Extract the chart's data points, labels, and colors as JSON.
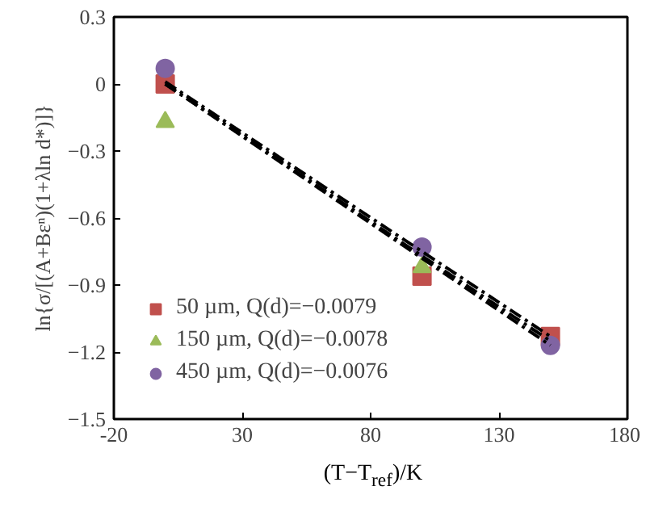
{
  "chart_data": {
    "type": "scatter",
    "xlabel": "(T−T$_{ref}$)/K",
    "ylabel": "ln{σ/[(A+Bεⁿ)(1+λln d*)]}",
    "x": [
      0,
      100,
      150
    ],
    "xlim": [
      -20,
      180
    ],
    "xticks": [
      -20,
      30,
      80,
      130,
      180
    ],
    "ylim": [
      -1.5,
      0.3
    ],
    "yticks": [
      {
        "value": -1.5,
        "label": "−1.5"
      },
      {
        "value": -1.2,
        "label": "−1.2"
      },
      {
        "value": -0.9,
        "label": "−0.9"
      },
      {
        "value": -0.6,
        "label": "−0.6"
      },
      {
        "value": -0.3,
        "label": "−0.3"
      },
      0,
      0.3
    ],
    "grid": false,
    "legend": "bottom left",
    "series": [
      {
        "name": "50 µm, Q(d)=−0.0079",
        "color": "#c0504d",
        "marker": "square",
        "values": [
          0.0,
          -0.86,
          -1.13
        ]
      },
      {
        "name": "150 µm, Q(d)=−0.0078",
        "color": "#9bbb59",
        "marker": "triangle",
        "values": [
          -0.17,
          -0.82,
          null
        ]
      },
      {
        "name": "450 µm, Q(d)=−0.0076",
        "color": "#8064a2",
        "marker": "circle",
        "values": [
          0.07,
          -0.73,
          -1.17
        ]
      },
      {
        "type": "line",
        "color": "#000000",
        "line_style": "dashdot",
        "values": [
          0.0,
          -0.78,
          -1.17
        ]
      },
      {
        "type": "line",
        "color": "#000000",
        "line_style": "dashdot",
        "values": [
          0.0,
          -0.77,
          -1.15
        ]
      },
      {
        "type": "line",
        "color": "#000000",
        "line_style": "dashdot",
        "values": [
          0.01,
          -0.75,
          -1.13
        ]
      }
    ]
  }
}
